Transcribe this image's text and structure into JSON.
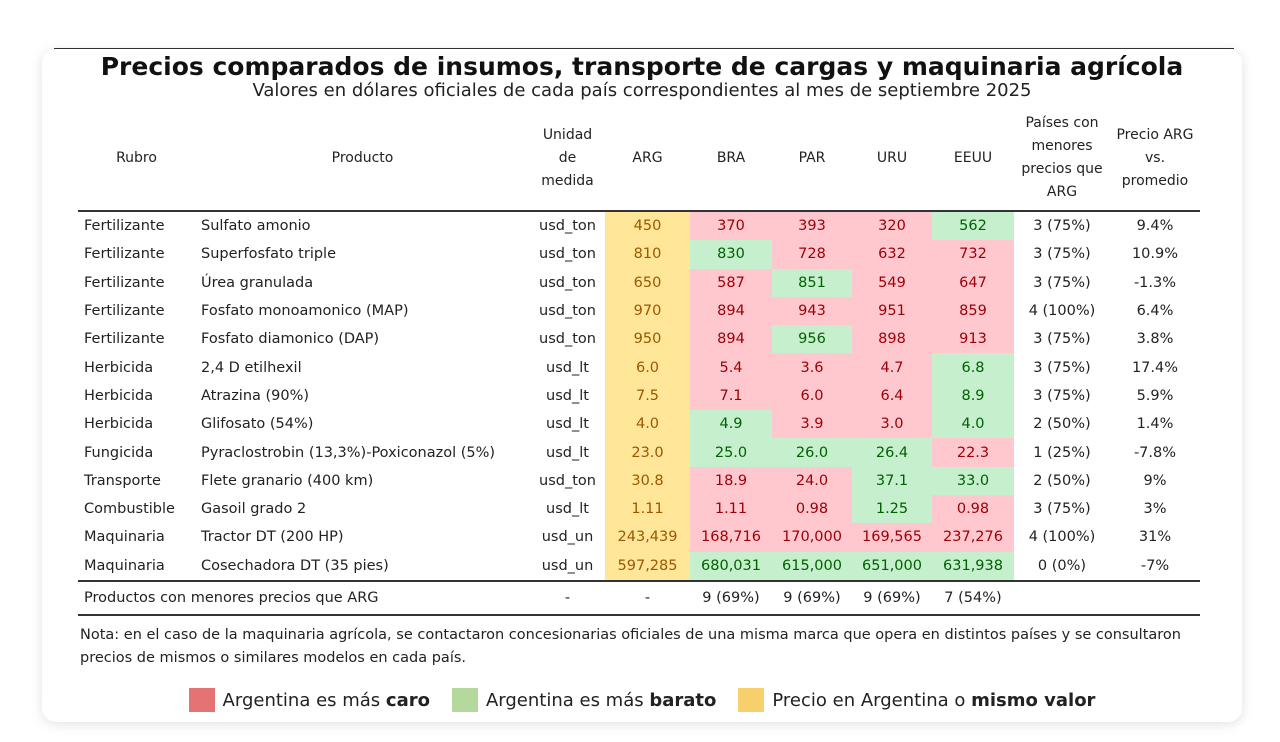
{
  "title": "Precios comparados de insumos, transporte de cargas y maquinaria agrícola",
  "subtitle": "Valores en dólares oficiales de cada país correspondientes al mes de septiembre 2025",
  "colors": {
    "caro": "#ffc7ce",
    "barato": "#c6efce",
    "mismo": "#ffe699"
  },
  "headers": [
    "Rubro",
    "Producto",
    "Unidad de medida",
    "ARG",
    "BRA",
    "PAR",
    "URU",
    "EEUU",
    "Países con menores precios que ARG",
    "Precio ARG vs. promedio"
  ],
  "rows": [
    {
      "rubro": "Fertilizante",
      "producto": "Sulfato amonio",
      "unidad": "usd_ton",
      "arg": "450",
      "vals": [
        "370",
        "393",
        "320",
        "562"
      ],
      "status": [
        "caro",
        "caro",
        "caro",
        "barato"
      ],
      "menores": "3 (75%)",
      "vs": "9.4%"
    },
    {
      "rubro": "Fertilizante",
      "producto": "Superfosfato triple",
      "unidad": "usd_ton",
      "arg": "810",
      "vals": [
        "830",
        "728",
        "632",
        "732"
      ],
      "status": [
        "barato",
        "caro",
        "caro",
        "caro"
      ],
      "menores": "3 (75%)",
      "vs": "10.9%"
    },
    {
      "rubro": "Fertilizante",
      "producto": "Úrea granulada",
      "unidad": "usd_ton",
      "arg": "650",
      "vals": [
        "587",
        "851",
        "549",
        "647"
      ],
      "status": [
        "caro",
        "barato",
        "caro",
        "caro"
      ],
      "menores": "3 (75%)",
      "vs": "-1.3%"
    },
    {
      "rubro": "Fertilizante",
      "producto": "Fosfato monoamonico (MAP)",
      "unidad": "usd_ton",
      "arg": "970",
      "vals": [
        "894",
        "943",
        "951",
        "859"
      ],
      "status": [
        "caro",
        "caro",
        "caro",
        "caro"
      ],
      "menores": "4 (100%)",
      "vs": "6.4%"
    },
    {
      "rubro": "Fertilizante",
      "producto": "Fosfato diamonico (DAP)",
      "unidad": "usd_ton",
      "arg": "950",
      "vals": [
        "894",
        "956",
        "898",
        "913"
      ],
      "status": [
        "caro",
        "barato",
        "caro",
        "caro"
      ],
      "menores": "3 (75%)",
      "vs": "3.8%"
    },
    {
      "rubro": "Herbicida",
      "producto": "2,4 D etilhexil",
      "unidad": "usd_lt",
      "arg": "6.0",
      "vals": [
        "5.4",
        "3.6",
        "4.7",
        "6.8"
      ],
      "status": [
        "caro",
        "caro",
        "caro",
        "barato"
      ],
      "menores": "3 (75%)",
      "vs": "17.4%"
    },
    {
      "rubro": "Herbicida",
      "producto": "Atrazina (90%)",
      "unidad": "usd_lt",
      "arg": "7.5",
      "vals": [
        "7.1",
        "6.0",
        "6.4",
        "8.9"
      ],
      "status": [
        "caro",
        "caro",
        "caro",
        "barato"
      ],
      "menores": "3 (75%)",
      "vs": "5.9%"
    },
    {
      "rubro": "Herbicida",
      "producto": "Glifosato (54%)",
      "unidad": "usd_lt",
      "arg": "4.0",
      "vals": [
        "4.9",
        "3.9",
        "3.0",
        "4.0"
      ],
      "status": [
        "barato",
        "caro",
        "caro",
        "barato"
      ],
      "menores": "2 (50%)",
      "vs": "1.4%"
    },
    {
      "rubro": "Fungicida",
      "producto": "Pyraclostrobin (13,3%)-Poxiconazol (5%)",
      "unidad": "usd_lt",
      "arg": "23.0",
      "vals": [
        "25.0",
        "26.0",
        "26.4",
        "22.3"
      ],
      "status": [
        "barato",
        "barato",
        "barato",
        "caro"
      ],
      "menores": "1 (25%)",
      "vs": "-7.8%"
    },
    {
      "rubro": "Transporte",
      "producto": "Flete granario (400 km)",
      "unidad": "usd_ton",
      "arg": "30.8",
      "vals": [
        "18.9",
        "24.0",
        "37.1",
        "33.0"
      ],
      "status": [
        "caro",
        "caro",
        "barato",
        "barato"
      ],
      "menores": "2 (50%)",
      "vs": "9%"
    },
    {
      "rubro": "Combustible",
      "producto": "Gasoil grado 2",
      "unidad": "usd_lt",
      "arg": "1.11",
      "vals": [
        "1.11",
        "0.98",
        "1.25",
        "0.98"
      ],
      "status": [
        "caro",
        "caro",
        "barato",
        "caro"
      ],
      "menores": "3 (75%)",
      "vs": "3%"
    },
    {
      "rubro": "Maquinaria",
      "producto": "Tractor DT (200 HP)",
      "unidad": "usd_un",
      "arg": "243,439",
      "vals": [
        "168,716",
        "170,000",
        "169,565",
        "237,276"
      ],
      "status": [
        "caro",
        "caro",
        "caro",
        "caro"
      ],
      "menores": "4 (100%)",
      "vs": "31%"
    },
    {
      "rubro": "Maquinaria",
      "producto": "Cosechadora DT (35 pies)",
      "unidad": "usd_un",
      "arg": "597,285",
      "vals": [
        "680,031",
        "615,000",
        "651,000",
        "631,938"
      ],
      "status": [
        "barato",
        "barato",
        "barato",
        "barato"
      ],
      "menores": "0 (0%)",
      "vs": "-7%"
    }
  ],
  "footer": {
    "label": "Productos con menores precios que ARG",
    "unidad": "-",
    "arg": "-",
    "vals": [
      "9 (69%)",
      "9 (69%)",
      "9 (69%)",
      "7 (54%)"
    ]
  },
  "note": "Nota: en el caso de la maquinaria agrícola, se contactaron concesionarias oficiales de una misma marca que opera en distintos países y se consultaron precios de mismos o similares modelos en cada país.",
  "legend": [
    {
      "pre": "Argentina es más ",
      "bold": "caro",
      "color": "#e57373"
    },
    {
      "pre": "Argentina es más ",
      "bold": "barato",
      "color": "#b5d99c"
    },
    {
      "pre": "Precio en Argentina o ",
      "bold": "mismo valor",
      "color": "#f7cf6b"
    }
  ]
}
